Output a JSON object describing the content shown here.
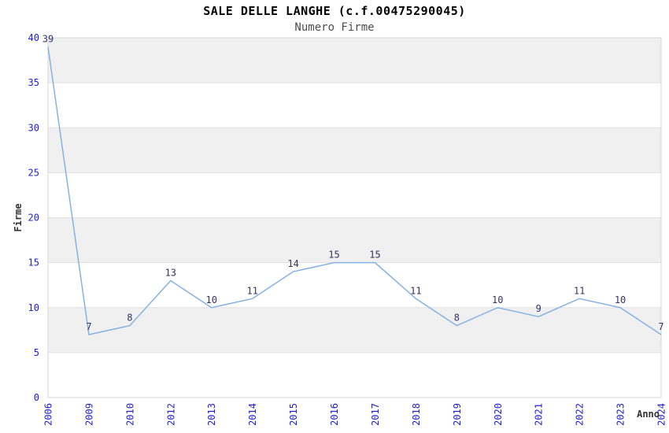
{
  "title": "SALE DELLE LANGHE (c.f.00475290045)",
  "subtitle": "Numero Firme",
  "chart_data": {
    "type": "line",
    "title": "SALE DELLE LANGHE (c.f.00475290045)",
    "subtitle": "Numero Firme",
    "xlabel": "Anno",
    "ylabel": "Firme",
    "categories": [
      "2006",
      "2009",
      "2010",
      "2012",
      "2013",
      "2014",
      "2015",
      "2016",
      "2017",
      "2018",
      "2019",
      "2020",
      "2021",
      "2022",
      "2023",
      "2024"
    ],
    "values": [
      39,
      7,
      8,
      13,
      10,
      11,
      14,
      15,
      15,
      11,
      8,
      10,
      9,
      11,
      10,
      7
    ],
    "series_name": "Numero Firme",
    "ylim": [
      0,
      40
    ],
    "ytick_step": 5,
    "yticks": [
      0,
      5,
      10,
      15,
      20,
      25,
      30,
      35,
      40
    ],
    "grid": "horizontal alternating bands, light gridlines at each y tick",
    "legend": "none",
    "point_labels_visible": true,
    "colors": {
      "line": "#85b2e3",
      "tick_label": "#2222cc",
      "point_label": "#333366",
      "band_fill": "#f0f0f0",
      "grid_line": "#e0e0e0",
      "plot_border": "#d6d6d6",
      "axis_title": "#333333",
      "title_text": "#000000",
      "subtitle_text": "#4d4d4d",
      "background": "#ffffff"
    }
  }
}
